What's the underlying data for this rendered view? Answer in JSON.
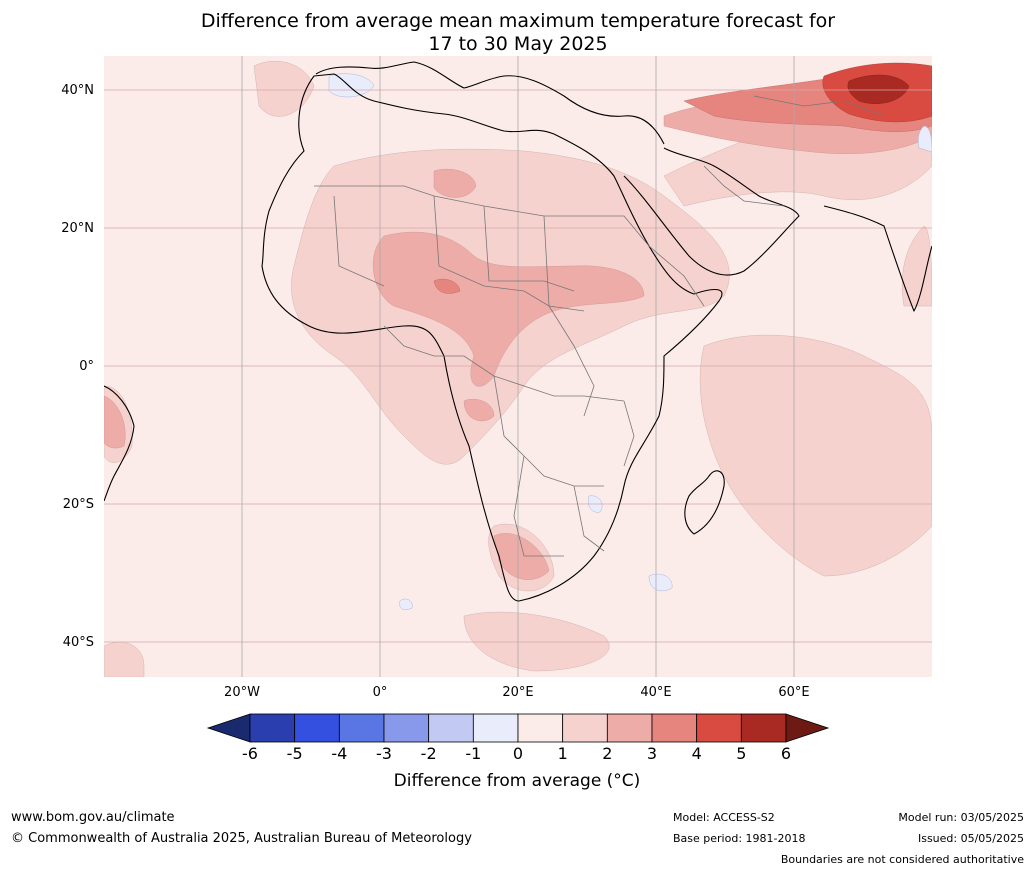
{
  "title_line1": "Difference from average mean maximum temperature forecast for",
  "title_line2": "17 to 30 May 2025",
  "lat_labels": [
    "40°N",
    "20°N",
    "0°",
    "20°S",
    "40°S"
  ],
  "lon_labels": [
    "20°W",
    "0°",
    "20°E",
    "40°E",
    "60°E"
  ],
  "colorbar": {
    "label": "Difference from average (°C)",
    "ticks": [
      "-6",
      "-5",
      "-4",
      "-3",
      "-2",
      "-1",
      "0",
      "1",
      "2",
      "3",
      "4",
      "5",
      "6"
    ],
    "colors": [
      "#1a2a6e",
      "#2a3eb0",
      "#3350e0",
      "#5a75e4",
      "#8898ea",
      "#c2c9f3",
      "#e9ecfb",
      "#fbecea",
      "#f6d2cf",
      "#eeaca8",
      "#e6847e",
      "#d94a40",
      "#a82a22",
      "#6e1a14"
    ]
  },
  "footer": {
    "website": "www.bom.gov.au/climate",
    "copyright": "© Commonwealth of Australia 2025, Australian Bureau of Meteorology",
    "model": "Model: ACCESS-S2",
    "base_period": "Base period: 1981-2018",
    "model_run": "Model run: 03/05/2025",
    "issued": "Issued: 05/05/2025",
    "boundaries_note": "Boundaries are not considered authoritative"
  }
}
